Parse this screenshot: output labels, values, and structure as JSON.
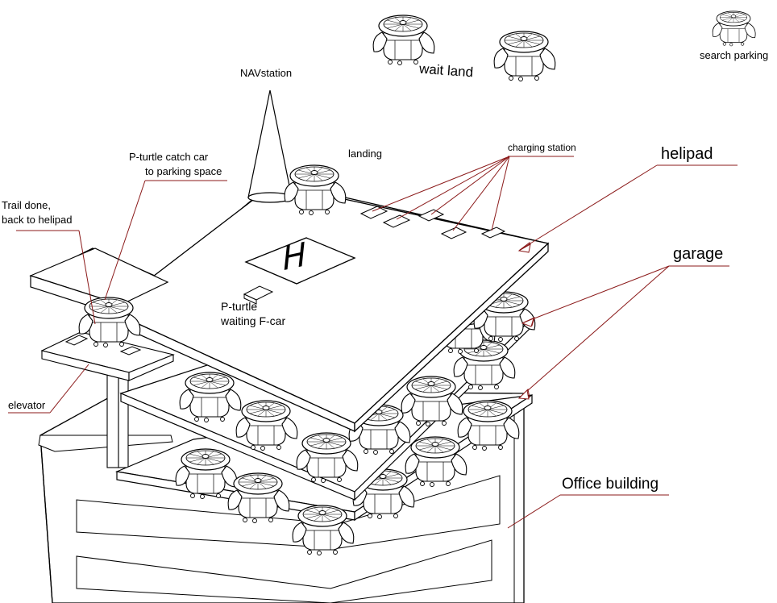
{
  "labels": {
    "nav_station": "NAVstation",
    "wait_land": "wait land",
    "search_parking": "search parking",
    "landing": "landing",
    "charging_station": "charging station",
    "helipad": "helipad",
    "garage": "garage",
    "catch_car_line1": "P-turtle catch car",
    "catch_car_line2": "to parking space",
    "trail_done_line1": "Trail done,",
    "trail_done_line2": "back to helipad",
    "turtle_waiting_line1": "P-turtle",
    "turtle_waiting_line2": "waiting F-car",
    "elevator": "elevator",
    "office_building": "Office building",
    "helipad_mark": "H"
  },
  "colors": {
    "leader": "#8b1a1a",
    "ink": "#000000"
  }
}
